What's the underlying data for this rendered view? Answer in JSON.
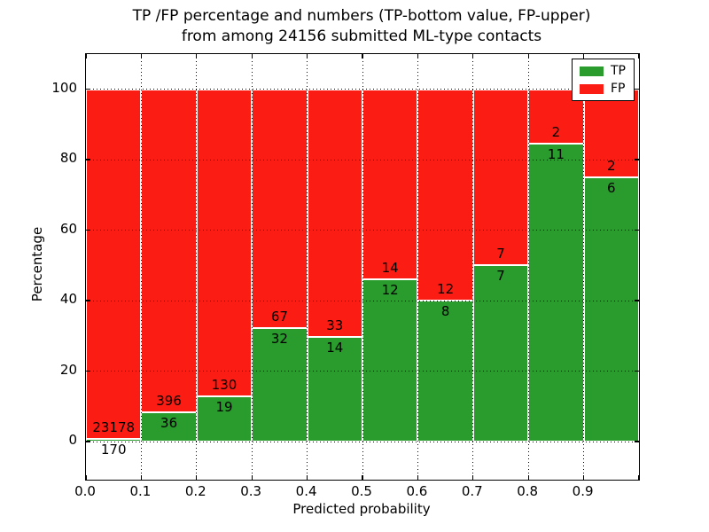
{
  "title": {
    "line1": "TP /FP percentage and numbers (TP-bottom value, FP-upper)",
    "line2": "from among 24156 submitted ML-type contacts"
  },
  "chart_data": {
    "type": "bar",
    "stacked": true,
    "units": "percent",
    "title": "TP /FP percentage and numbers (TP-bottom value, FP-upper) from among 24156 submitted ML-type contacts",
    "xlabel": "Predicted probability",
    "ylabel": "Percentage",
    "xlim": [
      0.0,
      1.0
    ],
    "ylim": [
      -11,
      110
    ],
    "grid": "dotted",
    "legend_position": "upper right",
    "total_contacts": 24156,
    "categories": [
      "0.0-0.1",
      "0.1-0.2",
      "0.2-0.3",
      "0.3-0.4",
      "0.4-0.5",
      "0.5-0.6",
      "0.6-0.7",
      "0.7-0.8",
      "0.8-0.9",
      "0.9-1.0"
    ],
    "x_tick_labels": [
      "0.0",
      "0.1",
      "0.2",
      "0.3",
      "0.4",
      "0.5",
      "0.6",
      "0.7",
      "0.8",
      "0.9"
    ],
    "y_ticks": [
      0,
      20,
      40,
      60,
      80,
      100
    ],
    "series": [
      {
        "name": "TP",
        "color": "#2a9b2d",
        "counts": [
          170,
          36,
          19,
          32,
          14,
          12,
          8,
          7,
          11,
          6
        ],
        "pct": [
          0.73,
          8.33,
          12.75,
          32.32,
          29.79,
          46.15,
          40.0,
          50.0,
          84.62,
          75.0
        ]
      },
      {
        "name": "FP",
        "color": "#fb1d14",
        "counts": [
          23178,
          396,
          130,
          67,
          33,
          14,
          12,
          7,
          2,
          2
        ],
        "pct": [
          99.27,
          91.67,
          87.25,
          67.68,
          70.21,
          53.85,
          60.0,
          50.0,
          15.38,
          25.0
        ]
      }
    ],
    "legend": {
      "entries": [
        {
          "label": "TP",
          "color": "#2a9b2d"
        },
        {
          "label": "FP",
          "color": "#fb1d14"
        }
      ]
    }
  }
}
